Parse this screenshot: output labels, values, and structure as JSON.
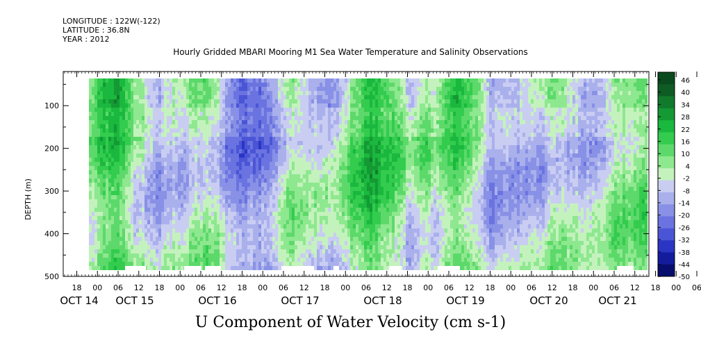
{
  "header": {
    "longitude": "LONGITUDE : 122W(-122)",
    "latitude": "LATITUDE : 36.8N",
    "year": "YEAR : 2012"
  },
  "chart_data": {
    "type": "heatmap",
    "title": "Hourly Gridded MBARI Mooring M1 Sea Water Temperature and Salinity Observations",
    "xlabel": "U Component of Water Velocity (cm s-1)",
    "ylabel": "DEPTH (m)",
    "ylim": [
      500,
      20
    ],
    "y_ticks": [
      100,
      200,
      300,
      400,
      500
    ],
    "x_hour_ticks": [
      "18",
      "00",
      "06",
      "12",
      "18",
      "00",
      "06",
      "12",
      "18",
      "00",
      "06",
      "12",
      "18",
      "00",
      "06",
      "12",
      "18",
      "00",
      "06",
      "12",
      "18",
      "00",
      "06",
      "12",
      "18",
      "00",
      "06",
      "12",
      "18",
      "00",
      "06",
      "12"
    ],
    "x_day_labels": [
      "OCT 14",
      "OCT 15",
      "OCT 16",
      "OCT 17",
      "OCT 18",
      "OCT 19",
      "OCT 20",
      "OCT 21"
    ],
    "colorbar": {
      "levels": [
        46,
        40,
        34,
        28,
        22,
        16,
        10,
        4,
        -2,
        -8,
        -14,
        -20,
        -26,
        -32,
        -38,
        -44,
        -50
      ],
      "colors_high_to_low": [
        "#0a4a1e",
        "#0e5c24",
        "#127a2c",
        "#149934",
        "#1ab83e",
        "#33cc4e",
        "#5cd96a",
        "#8ee88f",
        "#c4f2bd",
        "#c9cdf2",
        "#a9b0ec",
        "#8891e6",
        "#6a73e0",
        "#4a55d6",
        "#2b35c4",
        "#141c9e",
        "#080e6e"
      ]
    },
    "grid": false,
    "field_description_note": ""
  }
}
